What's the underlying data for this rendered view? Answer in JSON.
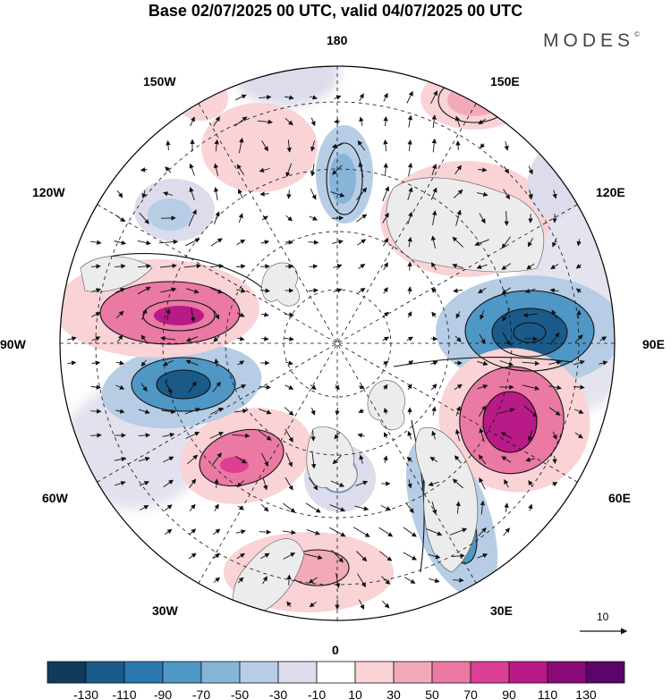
{
  "title": "Base 02/07/2025 00 UTC, valid 04/07/2025 00 UTC",
  "brand": "MODES",
  "brand_mark": "©",
  "longitude_labels": {
    "lon_180": "180",
    "lon_150e": "150E",
    "lon_120e": "120E",
    "lon_90e": "90E",
    "lon_60e": "60E",
    "lon_30e": "30E",
    "lon_0": "0",
    "lon_30w": "30W",
    "lon_60w": "60W",
    "lon_90w": "90W",
    "lon_120w": "120W",
    "lon_150w": "150W"
  },
  "vector_scale_label": "10",
  "colorbar": {
    "labels": [
      "-130",
      "-110",
      "-90",
      "-70",
      "-50",
      "-30",
      "-10",
      "10",
      "30",
      "50",
      "70",
      "90",
      "110",
      "130"
    ],
    "colors": [
      "#123a5c",
      "#1a5b8a",
      "#2b78b0",
      "#4f97c4",
      "#86b5d8",
      "#b6cde5",
      "#dcdcec",
      "#ffffff",
      "#f9d3d5",
      "#f2a9b8",
      "#ea79a4",
      "#dc3f94",
      "#b81a87",
      "#8a0a78",
      "#5a056a"
    ]
  },
  "map": {
    "type": "north polar stereographic",
    "field": "shaded anomaly with wind vectors",
    "circles_of_latitude": "dashed",
    "anomalies": [
      {
        "sign": "negative",
        "level": -110,
        "near": "90E"
      },
      {
        "sign": "positive",
        "level": 110,
        "near": "60E"
      },
      {
        "sign": "negative",
        "level": -70,
        "near": "30E"
      },
      {
        "sign": "positive",
        "level": 50,
        "near": "0"
      },
      {
        "sign": "negative",
        "level": -50,
        "near": "30W"
      },
      {
        "sign": "positive",
        "level": 70,
        "near": "60W"
      },
      {
        "sign": "negative",
        "level": -110,
        "near": "90W"
      },
      {
        "sign": "positive",
        "level": 90,
        "near": "90W-120W"
      },
      {
        "sign": "negative",
        "level": -30,
        "near": "120W"
      },
      {
        "sign": "positive",
        "level": 30,
        "near": "150W"
      },
      {
        "sign": "negative",
        "level": -50,
        "near": "180"
      },
      {
        "sign": "positive",
        "level": 30,
        "near": "150E"
      },
      {
        "sign": "positive",
        "level": 30,
        "near": "120E"
      }
    ]
  }
}
